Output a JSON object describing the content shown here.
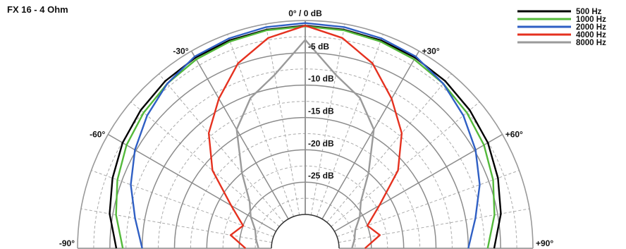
{
  "chart_data": {
    "type": "polar",
    "title": "FX 16 - 4 Ohm",
    "range_db": [
      -30,
      0
    ],
    "db_rings": [
      0,
      -5,
      -10,
      -15,
      -20,
      -25
    ],
    "db_labels": [
      {
        "db": 0,
        "text": "0° / 0 dB"
      },
      {
        "db": -5,
        "text": "-5 dB"
      },
      {
        "db": -10,
        "text": "-10 dB"
      },
      {
        "db": -15,
        "text": "-15 dB"
      },
      {
        "db": -20,
        "text": "-20 dB"
      },
      {
        "db": -25,
        "text": "-25 dB"
      }
    ],
    "angle_labels": [
      {
        "angle": -90,
        "text": "-90°"
      },
      {
        "angle": -60,
        "text": "-60°"
      },
      {
        "angle": -30,
        "text": "-30°"
      },
      {
        "angle": 30,
        "text": "+30°"
      },
      {
        "angle": 60,
        "text": "+60°"
      },
      {
        "angle": 90,
        "text": "+90°"
      }
    ],
    "angles": [
      0,
      10,
      20,
      30,
      40,
      50,
      60,
      70,
      80,
      90
    ],
    "series": [
      {
        "name": "500 Hz",
        "color": "#000000",
        "db": [
          -0.8,
          -0.9,
          -1.0,
          -1.2,
          -1.5,
          -2.0,
          -2.6,
          -3.5,
          -4.5,
          -6.0
        ]
      },
      {
        "name": "1000 Hz",
        "color": "#53b93a",
        "db": [
          -0.9,
          -1.0,
          -1.2,
          -1.5,
          -2.0,
          -2.6,
          -3.3,
          -4.3,
          -5.5,
          -7.0
        ]
      },
      {
        "name": "2000 Hz",
        "color": "#2f5fc4",
        "db": [
          -0.4,
          -0.5,
          -0.7,
          -1.0,
          -2.0,
          -3.3,
          -4.8,
          -6.5,
          -8.5,
          -10.0
        ]
      },
      {
        "name": "4000 Hz",
        "color": "#e5311f",
        "db": [
          -0.8,
          -2.2,
          -4.8,
          -8.5,
          -12.0,
          -16.5,
          -22.0,
          -25.0,
          -23.5,
          -26.0
        ]
      },
      {
        "name": "8000 Hz",
        "color": "#9a9a9a",
        "db": [
          -3.0,
          -8.0,
          -10.5,
          -14.0,
          -20.0,
          -24.0,
          -25.5,
          -27.0,
          -27.5,
          -28.0
        ]
      }
    ]
  }
}
